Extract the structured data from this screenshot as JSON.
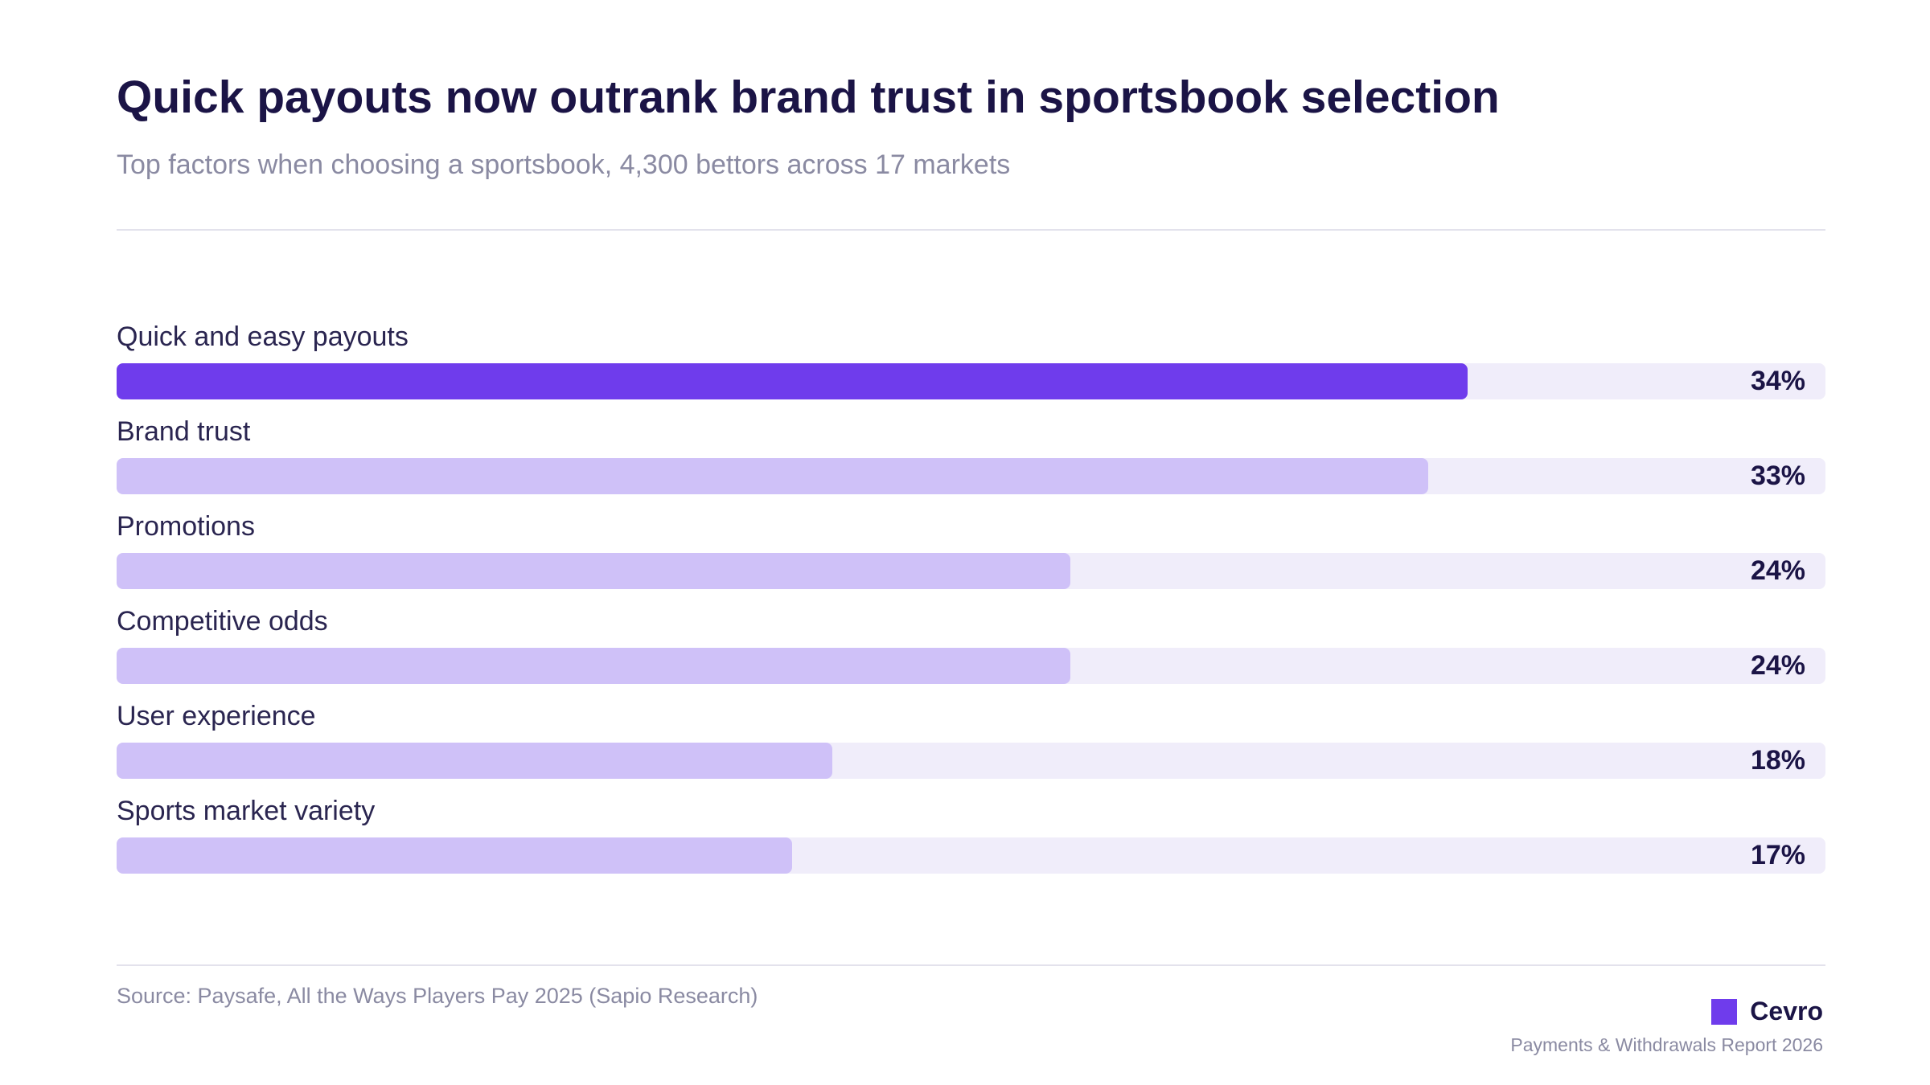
{
  "header": {
    "title": "Quick payouts now outrank brand trust in sportsbook selection",
    "subtitle": "Top factors when choosing a sportsbook, 4,300 bettors across 17 markets"
  },
  "chart_data": {
    "type": "bar",
    "orientation": "horizontal",
    "title": "Quick payouts now outrank brand trust in sportsbook selection",
    "subtitle": "Top factors when choosing a sportsbook, 4,300 bettors across 17 markets",
    "categories": [
      "Quick and easy payouts",
      "Brand trust",
      "Promotions",
      "Competitive odds",
      "User experience",
      "Sports market variety"
    ],
    "values": [
      34,
      33,
      24,
      24,
      18,
      17
    ],
    "value_labels": [
      "34%",
      "33%",
      "24%",
      "24%",
      "18%",
      "17%"
    ],
    "xlim": [
      0,
      43
    ],
    "highlight_index": 0,
    "grid": false,
    "colors": {
      "highlight": "#6f3cec",
      "bar": "#cfc1f8",
      "track": "#f0edfa"
    }
  },
  "footer": {
    "source": "Source: Paysafe, All the Ways Players Pay 2025 (Sapio Research)",
    "brand_name": "Cevro",
    "report": "Payments & Withdrawals Report 2026"
  }
}
